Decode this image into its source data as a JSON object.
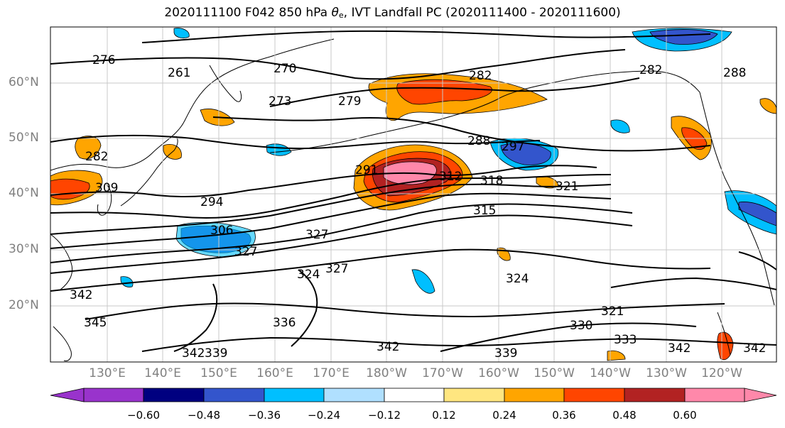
{
  "title": {
    "prefix": "2020111100 F042 850 hPa ",
    "symbol": "θ",
    "subscript": "e",
    "suffix": ", IVT Landfall PC (2020111400 - 2020111600)"
  },
  "map": {
    "lat_labels": [
      "60°N",
      "50°N",
      "40°N",
      "30°N",
      "20°N"
    ],
    "lon_labels": [
      "130°E",
      "140°E",
      "150°E",
      "160°E",
      "170°E",
      "180°W",
      "170°W",
      "160°W",
      "150°W",
      "140°W",
      "130°W",
      "120°W"
    ],
    "contour_labels": [
      "276",
      "270",
      "261",
      "273",
      "279",
      "282",
      "288",
      "282",
      "288",
      "282",
      "294",
      "291",
      "297",
      "306",
      "312",
      "318",
      "315",
      "321",
      "309",
      "327",
      "327",
      "324",
      "324",
      "330",
      "333",
      "339",
      "342",
      "342",
      "345",
      "336",
      "339",
      "342",
      "342",
      "321",
      "327",
      "342"
    ],
    "colors": {
      "frame": "#000000",
      "grid": "#c8c8c8",
      "contour": "#000000"
    }
  },
  "colorbar": {
    "ticks": [
      "−0.60",
      "−0.48",
      "−0.36",
      "−0.24",
      "−0.12",
      "0.12",
      "0.24",
      "0.36",
      "0.48",
      "0.60"
    ],
    "colors": [
      "#9933cc",
      "#000080",
      "#3355cc",
      "#00bfff",
      "#b0e0ff",
      "#ffffff",
      "#ffe680",
      "#ffa500",
      "#ff4500",
      "#b22222",
      "#ff88aa"
    ]
  }
}
